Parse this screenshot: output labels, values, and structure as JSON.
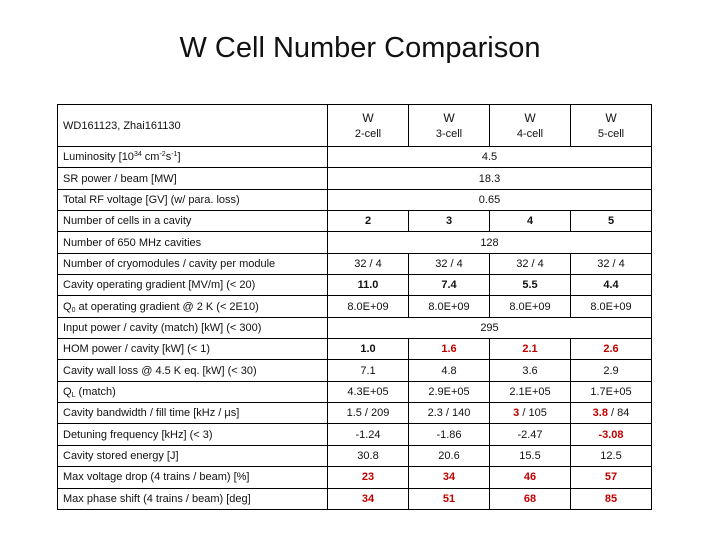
{
  "title": "W Cell Number Comparison",
  "corner_label": "WD161123, Zhai161130",
  "columns": [
    {
      "head": "W",
      "sub": "2-cell"
    },
    {
      "head": "W",
      "sub": "3-cell"
    },
    {
      "head": "W",
      "sub": "4-cell"
    },
    {
      "head": "W",
      "sub": "5-cell"
    }
  ],
  "rows": [
    {
      "label": "Luminosity [10³⁴ cm⁻²s⁻¹]",
      "span": "4.5"
    },
    {
      "label": "SR power / beam [MW]",
      "span": "18.3"
    },
    {
      "label": "Total RF voltage [GV] (w/ para. loss)",
      "span": "0.65"
    },
    {
      "label": "Number of cells in a cavity",
      "values": [
        "2",
        "3",
        "4",
        "5"
      ],
      "bold": [
        true,
        true,
        true,
        true
      ]
    },
    {
      "label": "Number of 650 MHz cavities",
      "span": "128"
    },
    {
      "label": "Number of cryomodules / cavity per module",
      "values": [
        "32 / 4",
        "32 / 4",
        "32 / 4",
        "32 / 4"
      ]
    },
    {
      "label": "Cavity operating gradient [MV/m] (< 20)",
      "values": [
        "11.0",
        "7.4",
        "5.5",
        "4.4"
      ],
      "bold": [
        true,
        true,
        true,
        true
      ]
    },
    {
      "label": "Q0 at operating gradient @ 2 K (< 2E10)",
      "values": [
        "8.0E+09",
        "8.0E+09",
        "8.0E+09",
        "8.0E+09"
      ]
    },
    {
      "label": "Input power / cavity (match) [kW] (< 300)",
      "span": "295"
    },
    {
      "label": "HOM power / cavity [kW] (< 1)",
      "values": [
        "1.0",
        "1.6",
        "2.1",
        "2.6"
      ],
      "bold": [
        true,
        true,
        true,
        true
      ],
      "red": [
        false,
        true,
        true,
        true
      ]
    },
    {
      "label": "Cavity wall loss @ 4.5 K eq. [kW] (< 30)",
      "values": [
        "7.1",
        "4.8",
        "3.6",
        "2.9"
      ]
    },
    {
      "label": "QL (match)",
      "values": [
        "4.3E+05",
        "2.9E+05",
        "2.1E+05",
        "1.7E+05"
      ]
    },
    {
      "label": "Cavity bandwidth / fill time [kHz / μs]",
      "values": [
        "1.5 / 209",
        "2.3 / 140",
        "3 / 105",
        "3.8 / 84"
      ],
      "redPart": [
        null,
        null,
        "3",
        "3.8"
      ]
    },
    {
      "label": "Detuning frequency [kHz] (< 3)",
      "values": [
        "-1.24",
        "-1.86",
        "-2.47",
        "-3.08"
      ],
      "bold": [
        false,
        false,
        false,
        true
      ],
      "red": [
        false,
        false,
        false,
        true
      ]
    },
    {
      "label": "Cavity stored energy [J]",
      "values": [
        "30.8",
        "20.6",
        "15.5",
        "12.5"
      ]
    },
    {
      "label": "Max voltage drop (4 trains / beam) [%]",
      "values": [
        "23",
        "34",
        "46",
        "57"
      ],
      "bold": [
        true,
        true,
        true,
        true
      ],
      "red": [
        true,
        true,
        true,
        true
      ]
    },
    {
      "label": "Max phase shift (4 trains / beam) [deg]",
      "values": [
        "34",
        "51",
        "68",
        "85"
      ],
      "bold": [
        true,
        true,
        true,
        true
      ],
      "red": [
        true,
        true,
        true,
        true
      ]
    }
  ],
  "colors": {
    "highlight": "#c00000",
    "border": "#000000"
  }
}
